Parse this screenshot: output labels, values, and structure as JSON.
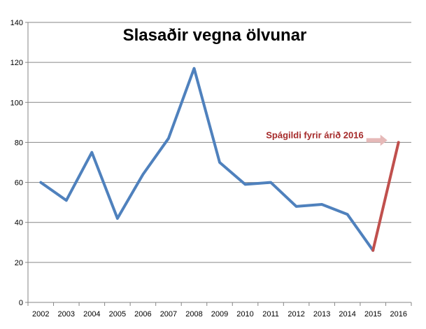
{
  "chart_data": {
    "type": "line",
    "title": "Slasaðir vegna ölvunar",
    "xlabel": "",
    "ylabel": "",
    "ylim": [
      0,
      140
    ],
    "yticks": [
      0,
      20,
      40,
      60,
      80,
      100,
      120,
      140
    ],
    "grid": true,
    "categories": [
      "2002",
      "2003",
      "2004",
      "2005",
      "2006",
      "2007",
      "2008",
      "2009",
      "2010",
      "2011",
      "2012",
      "2013",
      "2014",
      "2015",
      "2016"
    ],
    "series": [
      {
        "color": "#4f81bd",
        "values": [
          60,
          51,
          75,
          42,
          64,
          82,
          117,
          70,
          59,
          60,
          48,
          49,
          44,
          26,
          null
        ]
      },
      {
        "color": "#c0504d",
        "values": [
          null,
          null,
          null,
          null,
          null,
          null,
          null,
          null,
          null,
          null,
          null,
          null,
          null,
          26,
          80
        ]
      }
    ],
    "annotation": {
      "text": "Spágildi fyrir árið 2016",
      "color": "#a52a2a",
      "arrow_color": "#e6b9b8",
      "target": {
        "category": "2016",
        "value": 80
      }
    }
  }
}
